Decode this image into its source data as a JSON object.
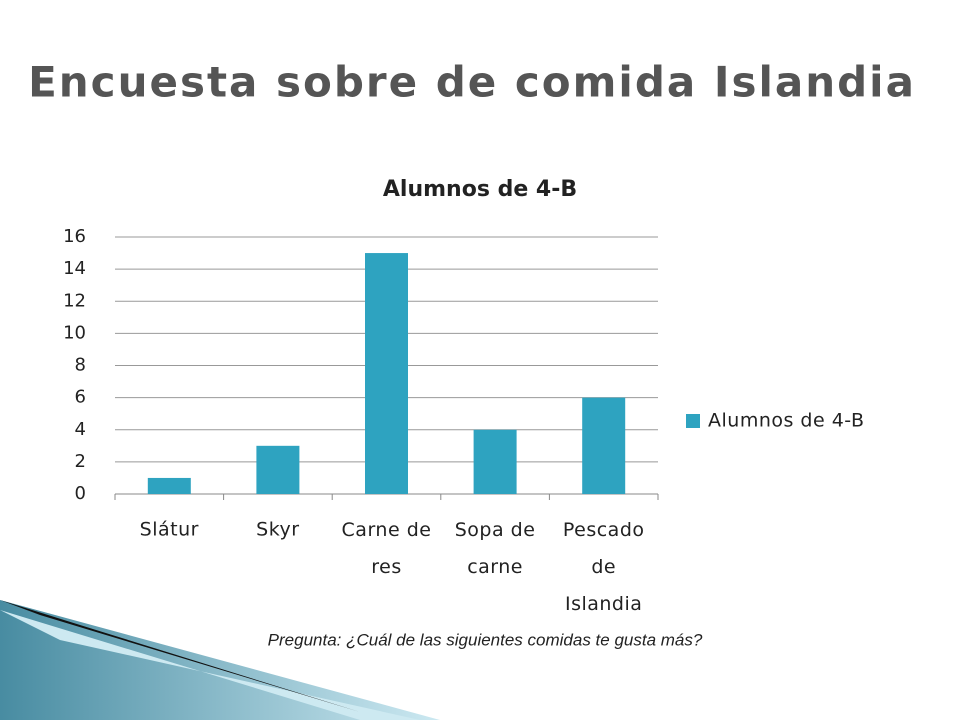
{
  "slide": {
    "title": "Encuesta sobre de comida Islandia",
    "note": "Pregunta: ¿Cuál de las siguientes comidas  te gusta más?"
  },
  "chart_data": {
    "type": "bar",
    "title": "Alumnos de 4-B",
    "categories": [
      "Slátur",
      "Skyr",
      "Carne de res",
      "Sopa de carne",
      "Pescado de Islandia"
    ],
    "series": [
      {
        "name": "Alumnos de 4-B",
        "color": "#2ea3c0",
        "values": [
          1,
          3,
          15,
          4,
          6
        ]
      }
    ],
    "ylim": [
      0,
      16
    ],
    "yticks": [
      0,
      2,
      4,
      6,
      8,
      10,
      12,
      14,
      16
    ],
    "grid": true,
    "legend": "right"
  }
}
